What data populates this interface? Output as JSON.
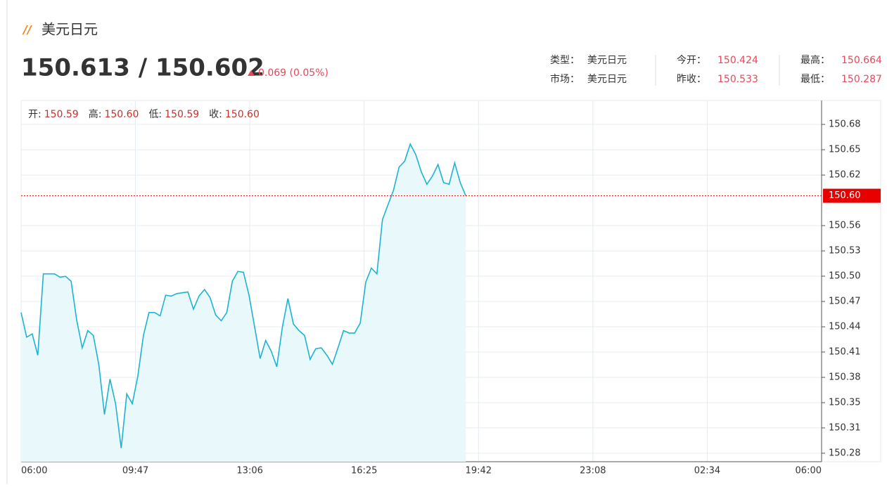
{
  "header": {
    "title": "美元日元",
    "price": "150.613 / 150.602",
    "change": "0.069 (0.05%)",
    "quote": [
      [
        {
          "label": "类型：",
          "value": "美元日元"
        },
        {
          "label": "今开：",
          "value": "150.424"
        },
        {
          "label": "最高：",
          "value": "150.664"
        }
      ],
      [
        {
          "label": "市场：",
          "value": "美元日元"
        },
        {
          "label": "昨收：",
          "value": "150.533"
        },
        {
          "label": "最低：",
          "value": "150.287"
        }
      ]
    ]
  },
  "chart_data": {
    "type": "line",
    "color": "#1cb4d2",
    "area_color": "#e9f8fa",
    "grid": true,
    "ohlc": [
      {
        "label": "开:",
        "value": "150.59"
      },
      {
        "label": "高:",
        "value": "150.60"
      },
      {
        "label": "低:",
        "value": "150.59"
      },
      {
        "label": "收:",
        "value": "150.60"
      }
    ],
    "current": {
      "value": 150.597,
      "label": "150.60"
    },
    "ylim": [
      150.2735,
      150.7129
    ],
    "yticks": [
      {
        "value": 150.2838,
        "label": "150.28"
      },
      {
        "value": 150.3146,
        "label": "150.31"
      },
      {
        "value": 150.3453,
        "label": "150.35"
      },
      {
        "value": 150.3761,
        "label": "150.38"
      },
      {
        "value": 150.4069,
        "label": "150.41"
      },
      {
        "value": 150.4376,
        "label": "150.44"
      },
      {
        "value": 150.4684,
        "label": "150.47"
      },
      {
        "value": 150.4992,
        "label": "150.50"
      },
      {
        "value": 150.5299,
        "label": "150.53"
      },
      {
        "value": 150.5607,
        "label": "150.56"
      },
      {
        "value": 150.6222,
        "label": "150.62"
      },
      {
        "value": 150.653,
        "label": "150.65"
      },
      {
        "value": 150.6838,
        "label": "150.68"
      }
    ],
    "xticks": [
      "06:00",
      "09:47",
      "13:06",
      "16:25",
      "19:42",
      "23:08",
      "02:34",
      "06:00"
    ],
    "x": [
      "06:00",
      "06:10",
      "06:20",
      "06:30",
      "06:40",
      "06:50",
      "07:00",
      "07:10",
      "07:20",
      "07:30",
      "07:40",
      "07:50",
      "08:00",
      "08:10",
      "08:20",
      "08:30",
      "08:40",
      "08:50",
      "09:00",
      "09:10",
      "09:20",
      "09:30",
      "09:40",
      "09:50",
      "10:00",
      "10:10",
      "10:20",
      "10:30",
      "10:40",
      "10:50",
      "11:00",
      "11:10",
      "11:20",
      "11:30",
      "11:40",
      "11:50",
      "12:00",
      "12:10",
      "12:20",
      "12:30",
      "12:40",
      "12:50",
      "13:00",
      "13:10",
      "13:20",
      "13:30",
      "13:40",
      "13:50",
      "14:00",
      "14:10",
      "14:20",
      "14:30",
      "14:40",
      "14:50",
      "15:00",
      "15:10",
      "15:20",
      "15:30",
      "15:40",
      "15:50",
      "16:00",
      "16:10",
      "16:20",
      "16:30",
      "16:40",
      "16:50",
      "17:00",
      "17:10",
      "17:20",
      "17:30",
      "17:40",
      "17:50",
      "18:00",
      "18:10",
      "18:20",
      "18:30",
      "18:40",
      "18:50",
      "19:00",
      "19:10",
      "19:20"
    ],
    "values": [
      150.455,
      150.425,
      150.429,
      150.403,
      150.502,
      150.502,
      150.502,
      150.498,
      150.499,
      150.493,
      150.446,
      150.412,
      150.433,
      150.427,
      150.391,
      150.331,
      150.374,
      150.344,
      150.29,
      150.356,
      150.344,
      150.378,
      150.427,
      150.455,
      150.455,
      150.451,
      150.476,
      150.475,
      150.478,
      150.479,
      150.48,
      150.459,
      150.475,
      150.483,
      150.473,
      150.452,
      150.445,
      150.455,
      150.493,
      150.505,
      150.504,
      150.476,
      150.438,
      150.399,
      150.421,
      150.408,
      150.389,
      150.437,
      150.472,
      150.441,
      150.433,
      150.427,
      150.398,
      150.411,
      150.412,
      150.403,
      150.392,
      150.412,
      150.433,
      150.43,
      150.43,
      150.442,
      150.492,
      150.509,
      150.502,
      150.568,
      150.586,
      150.604,
      150.632,
      150.639,
      150.66,
      150.647,
      150.626,
      150.611,
      150.621,
      150.635,
      150.613,
      150.611,
      150.637,
      150.613,
      150.597
    ]
  }
}
